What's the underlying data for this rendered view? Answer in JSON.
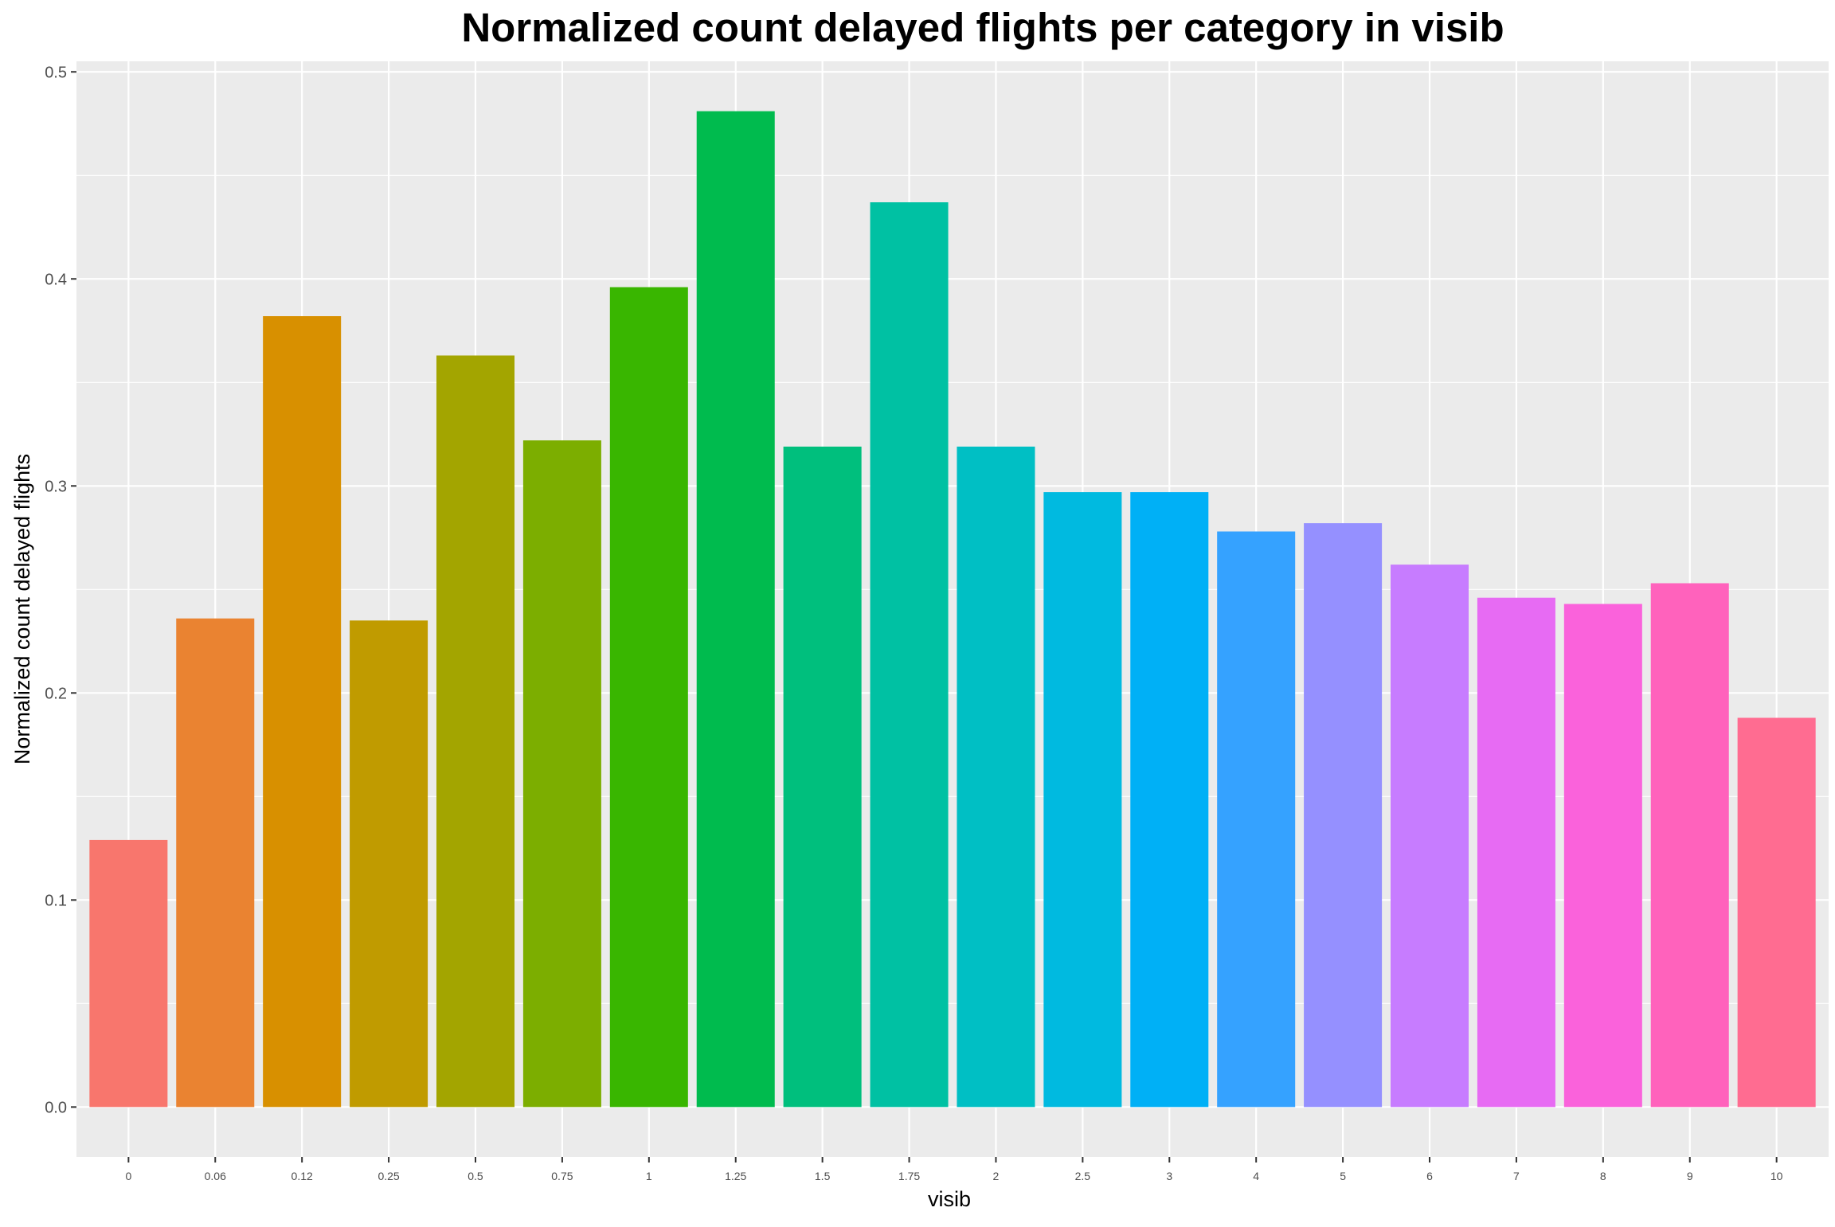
{
  "chart_data": {
    "type": "bar",
    "title": "Normalized count delayed flights per category in visib",
    "xlabel": "visib",
    "ylabel": "Normalized count delayed flights",
    "categories": [
      "0",
      "0.06",
      "0.12",
      "0.25",
      "0.5",
      "0.75",
      "1",
      "1.25",
      "1.5",
      "1.75",
      "2",
      "2.5",
      "3",
      "4",
      "5",
      "6",
      "7",
      "8",
      "9",
      "10"
    ],
    "values": [
      0.129,
      0.236,
      0.382,
      0.235,
      0.363,
      0.322,
      0.396,
      0.481,
      0.319,
      0.437,
      0.319,
      0.297,
      0.297,
      0.278,
      0.282,
      0.262,
      0.246,
      0.243,
      0.253,
      0.188
    ],
    "bar_colors": [
      "#F8766D",
      "#EA8331",
      "#D89000",
      "#C09B00",
      "#A3A500",
      "#7CAE00",
      "#39B600",
      "#00BB4E",
      "#00BF7D",
      "#00C1A3",
      "#00BFC4",
      "#00BAE0",
      "#00B0F6",
      "#35A2FF",
      "#9590FF",
      "#C77CFF",
      "#E76BF3",
      "#FA62DB",
      "#FF62BC",
      "#FF6C91"
    ],
    "yticks": [
      "0.0",
      "0.1",
      "0.2",
      "0.3",
      "0.4",
      "0.5"
    ],
    "ylim": [
      -0.0241,
      0.5051
    ],
    "grid": true,
    "legend": "none",
    "panel_color": "#EBEBEB",
    "grid_color": "#FFFFFF"
  }
}
